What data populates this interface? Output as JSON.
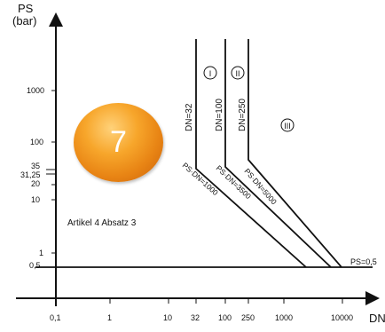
{
  "chart_data": {
    "type": "line",
    "y_axis_label": [
      "PS",
      "(bar)"
    ],
    "x_axis_label": "DN",
    "x_scale": "log",
    "y_scale": "log",
    "x_ticks": [
      "0,1",
      "1",
      "10",
      "32",
      "100",
      "250",
      "1000",
      "10000"
    ],
    "y_ticks": [
      "0,5",
      "1",
      "10",
      "20",
      "31,25",
      "35",
      "100",
      "1000"
    ],
    "regions": [
      "I",
      "II",
      "III"
    ],
    "boundary_lines": [
      {
        "label": "PS=0,5",
        "type": "horizontal",
        "PS": 0.5
      },
      {
        "label": "DN=32",
        "type": "vertical",
        "DN": 32
      },
      {
        "label": "DN=100",
        "type": "vertical",
        "DN": 100
      },
      {
        "label": "DN=250",
        "type": "vertical",
        "DN": 250
      },
      {
        "label": "PS·DN=1000",
        "type": "product",
        "PS_DN": 1000
      },
      {
        "label": "PS·DN=3500",
        "type": "product",
        "PS_DN": 3500
      },
      {
        "label": "PS·DN=5000",
        "type": "product",
        "PS_DN": 5000
      }
    ],
    "annotation": "Artikel 4 Absatz 3"
  },
  "badge": {
    "number": "7",
    "color": "#f29a22"
  }
}
